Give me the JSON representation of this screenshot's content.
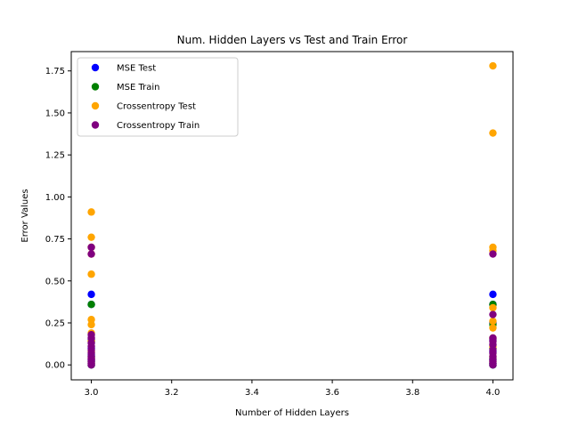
{
  "chart_data": {
    "type": "scatter",
    "title": "Num. Hidden Layers vs Test and Train Error",
    "xlabel": "Number of Hidden Layers",
    "ylabel": "Error Values",
    "xlim": [
      2.95,
      4.05
    ],
    "ylim": [
      -0.089,
      1.865
    ],
    "xticks": [
      "3.0",
      "3.2",
      "3.4",
      "3.6",
      "3.8",
      "4.0"
    ],
    "yticks": [
      "0.00",
      "0.25",
      "0.50",
      "0.75",
      "1.00",
      "1.25",
      "1.50",
      "1.75"
    ],
    "grid": false,
    "legend_position": "upper-left",
    "series": [
      {
        "name": "MSE Test",
        "color": "#0000ff",
        "points": [
          [
            3,
            0.42
          ],
          [
            3,
            0.36
          ],
          [
            3,
            0.15
          ],
          [
            3,
            0.1
          ],
          [
            3,
            0.06
          ],
          [
            3,
            0.03
          ],
          [
            3,
            0.01
          ],
          [
            3,
            0.0
          ],
          [
            4,
            0.42
          ],
          [
            4,
            0.36
          ],
          [
            4,
            0.25
          ],
          [
            4,
            0.15
          ],
          [
            4,
            0.08
          ],
          [
            4,
            0.03
          ],
          [
            4,
            0.01
          ],
          [
            4,
            0.0
          ]
        ]
      },
      {
        "name": "MSE Train",
        "color": "#008000",
        "points": [
          [
            3,
            0.36
          ],
          [
            3,
            0.14
          ],
          [
            3,
            0.05
          ],
          [
            3,
            0.02
          ],
          [
            3,
            0.0
          ],
          [
            4,
            0.36
          ],
          [
            4,
            0.24
          ],
          [
            4,
            0.1
          ],
          [
            4,
            0.04
          ],
          [
            4,
            0.01
          ],
          [
            4,
            0.0
          ]
        ]
      },
      {
        "name": "Crossentropy Test",
        "color": "#ffa500",
        "points": [
          [
            3,
            0.91
          ],
          [
            3,
            0.76
          ],
          [
            3,
            0.7
          ],
          [
            3,
            0.66
          ],
          [
            3,
            0.54
          ],
          [
            3,
            0.27
          ],
          [
            3,
            0.24
          ],
          [
            3,
            0.19
          ],
          [
            3,
            0.14
          ],
          [
            3,
            0.08
          ],
          [
            3,
            0.04
          ],
          [
            3,
            0.01
          ],
          [
            4,
            1.78
          ],
          [
            4,
            1.38
          ],
          [
            4,
            0.7
          ],
          [
            4,
            0.68
          ],
          [
            4,
            0.34
          ],
          [
            4,
            0.26
          ],
          [
            4,
            0.22
          ],
          [
            4,
            0.16
          ],
          [
            4,
            0.11
          ],
          [
            4,
            0.05
          ],
          [
            4,
            0.02
          ]
        ]
      },
      {
        "name": "Crossentropy Train",
        "color": "#800080",
        "points": [
          [
            3,
            0.7
          ],
          [
            3,
            0.66
          ],
          [
            3,
            0.18
          ],
          [
            3,
            0.16
          ],
          [
            3,
            0.13
          ],
          [
            3,
            0.11
          ],
          [
            3,
            0.09
          ],
          [
            3,
            0.07
          ],
          [
            3,
            0.05
          ],
          [
            3,
            0.04
          ],
          [
            3,
            0.03
          ],
          [
            3,
            0.02
          ],
          [
            3,
            0.01
          ],
          [
            3,
            0.0
          ],
          [
            4,
            0.66
          ],
          [
            4,
            0.3
          ],
          [
            4,
            0.16
          ],
          [
            4,
            0.14
          ],
          [
            4,
            0.12
          ],
          [
            4,
            0.09
          ],
          [
            4,
            0.07
          ],
          [
            4,
            0.05
          ],
          [
            4,
            0.03
          ],
          [
            4,
            0.02
          ],
          [
            4,
            0.01
          ],
          [
            4,
            0.0
          ]
        ]
      }
    ]
  }
}
